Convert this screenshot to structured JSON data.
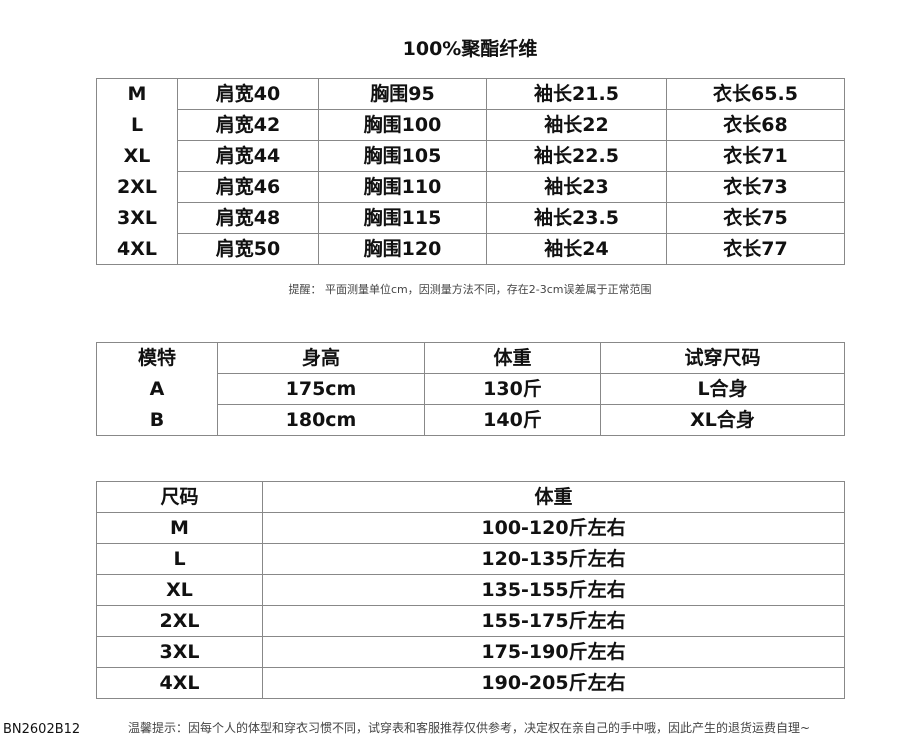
{
  "title": "100%聚酯纤维",
  "size_table": {
    "rows": [
      [
        "M",
        "肩宽40",
        "胸围95",
        "袖长21.5",
        "衣长65.5"
      ],
      [
        "L",
        "肩宽42",
        "胸围100",
        "袖长22",
        "衣长68"
      ],
      [
        "XL",
        "肩宽44",
        "胸围105",
        "袖长22.5",
        "衣长71"
      ],
      [
        "2XL",
        "肩宽46",
        "胸围110",
        "袖长23",
        "衣长73"
      ],
      [
        "3XL",
        "肩宽48",
        "胸围115",
        "袖长23.5",
        "衣长75"
      ],
      [
        "4XL",
        "肩宽50",
        "胸围120",
        "袖长24",
        "衣长77"
      ]
    ]
  },
  "measure_note": "提醒： 平面测量单位cm，因测量方法不同，存在2-3cm误差属于正常范围",
  "model_table": {
    "headers": [
      "模特",
      "身高",
      "体重",
      "试穿尺码"
    ],
    "rows": [
      [
        "A",
        "175cm",
        "130斤",
        "L合身"
      ],
      [
        "B",
        "180cm",
        "140斤",
        "XL合身"
      ]
    ]
  },
  "weight_table": {
    "headers": [
      "尺码",
      "体重"
    ],
    "rows": [
      [
        "M",
        "100-120斤左右"
      ],
      [
        "L",
        "120-135斤左右"
      ],
      [
        "XL",
        "135-155斤左右"
      ],
      [
        "2XL",
        "155-175斤左右"
      ],
      [
        "3XL",
        "175-190斤左右"
      ],
      [
        "4XL",
        "190-205斤左右"
      ]
    ]
  },
  "footer": {
    "code": "BN2602B12",
    "tip": "温馨提示：因每个人的体型和穿衣习惯不同，试穿表和客服推荐仅供参考，决定权在亲自己的手中哦，因此产生的退货运费自理~"
  }
}
